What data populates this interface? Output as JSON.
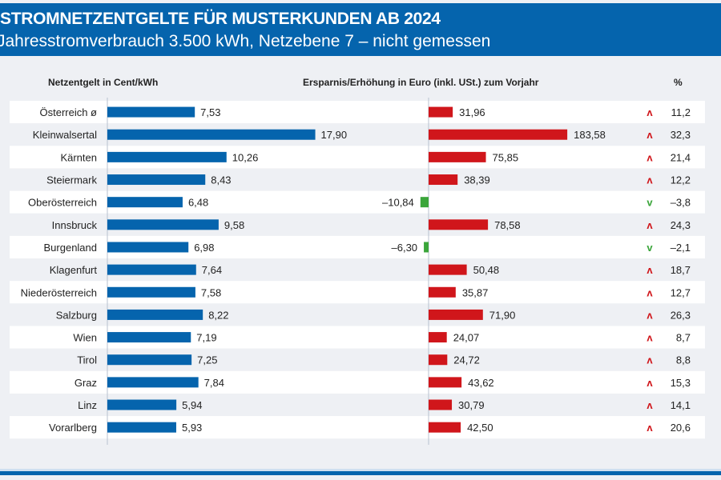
{
  "header": {
    "title": "STROMNETZENTGELTE FÜR MUSTERKUNDEN AB 2024",
    "subtitle": "Jahresstromverbrauch 3.500 kWh, Netzebene 7 – nicht gemessen"
  },
  "chart_data": {
    "type": "bar",
    "title": "STROMNETZENTGELTE FÜR MUSTERKUNDEN AB 2024",
    "column_headers": {
      "fee": "Netzentgelt in Cent/kWh",
      "change": "Ersparnis/Erhöhung in Euro (inkl. USt.) zum Vorjahr",
      "percent": "%"
    },
    "categories": [
      "Österreich ø",
      "Kleinwalsertal",
      "Kärnten",
      "Steiermark",
      "Oberösterreich",
      "Innsbruck",
      "Burgenland",
      "Klagenfurt",
      "Niederösterreich",
      "Salzburg",
      "Wien",
      "Tirol",
      "Graz",
      "Linz",
      "Vorarlberg"
    ],
    "series": [
      {
        "name": "Netzentgelt in Cent/kWh",
        "values": [
          7.53,
          17.9,
          10.26,
          8.43,
          6.48,
          9.58,
          6.98,
          7.64,
          7.58,
          8.22,
          7.19,
          7.25,
          7.84,
          5.94,
          5.93
        ],
        "labels": [
          "7,53",
          "17,90",
          "10,26",
          "8,43",
          "6,48",
          "9,58",
          "6,98",
          "7,64",
          "7,58",
          "8,22",
          "7,19",
          "7,25",
          "7,84",
          "5,94",
          "5,93"
        ]
      },
      {
        "name": "Ersparnis/Erhöhung in Euro",
        "values": [
          31.96,
          183.58,
          75.85,
          38.39,
          -10.84,
          78.58,
          -6.3,
          50.48,
          35.87,
          71.9,
          24.07,
          24.72,
          43.62,
          30.79,
          42.5
        ],
        "labels": [
          "31,96",
          "183,58",
          "75,85",
          "38,39",
          "–10,84",
          "78,58",
          "–6,30",
          "50,48",
          "35,87",
          "71,90",
          "24,07",
          "24,72",
          "43,62",
          "30,79",
          "42,50"
        ]
      },
      {
        "name": "%",
        "values": [
          11.2,
          32.3,
          21.4,
          12.2,
          -3.8,
          24.3,
          -2.1,
          18.7,
          12.7,
          26.3,
          8.7,
          8.8,
          15.3,
          14.1,
          20.6
        ],
        "labels": [
          "11,2",
          "32,3",
          "21,4",
          "12,2",
          "–3,8",
          "24,3",
          "–2,1",
          "18,7",
          "12,7",
          "26,3",
          "8,7",
          "8,8",
          "15,3",
          "14,1",
          "20,6"
        ]
      }
    ],
    "arrows": {
      "up": "^",
      "down": "v"
    },
    "colors": {
      "fee": "#0564ad",
      "increase": "#d0161b",
      "decrease": "#3aa53a",
      "header": "#0564ad"
    }
  }
}
